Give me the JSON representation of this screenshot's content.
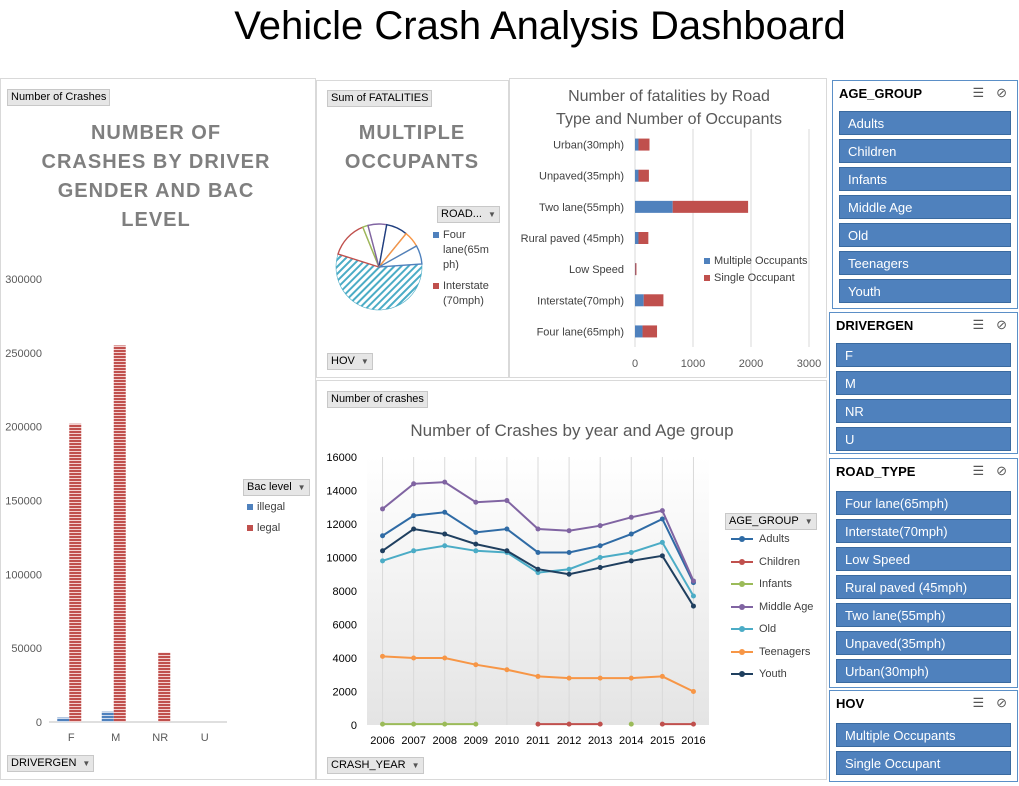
{
  "page_title": "Vehicle Crash Analysis Dashboard",
  "colors": {
    "blue": "#4f81bd",
    "red": "#c0504d",
    "slicer_bg": "#4f81bd"
  },
  "gender_chart": {
    "value_button": "Number of Crashes",
    "title_lines": [
      "NUMBER OF",
      "CRASHES BY DRIVER",
      "GENDER AND BAC",
      "LEVEL"
    ],
    "axis_button": "DRIVERGEN",
    "legend_button": "Bac level",
    "legend": [
      "illegal",
      "legal"
    ]
  },
  "pie_chart": {
    "value_button": "Sum of FATALITIES",
    "title_lines": [
      "MULTIPLE",
      "OCCUPANTS"
    ],
    "legend_button": "ROAD...",
    "legend": [
      "Four lane(65m ph)",
      "Interstate (70mph)"
    ],
    "filter_button": "HOV"
  },
  "road_chart": {
    "title_lines": [
      "Number of fatalities by Road",
      "Type and Number of Occupants"
    ],
    "legend": [
      "Multiple Occupants",
      "Single Occupant"
    ]
  },
  "line_chart": {
    "value_button": "Number of crashes",
    "title": "Number of Crashes by year and Age group",
    "legend_button": "AGE_GROUP",
    "axis_button": "CRASH_YEAR"
  },
  "chart_data": [
    {
      "type": "bar",
      "title": "NUMBER OF CRASHES BY DRIVER GENDER AND BAC LEVEL",
      "categories": [
        "F",
        "M",
        "NR",
        "U"
      ],
      "series": [
        {
          "name": "illegal",
          "values": [
            3000,
            7000,
            0,
            0
          ]
        },
        {
          "name": "legal",
          "values": [
            202000,
            255000,
            47000,
            0
          ]
        }
      ],
      "ylim": [
        0,
        300000
      ],
      "yticks": [
        "0",
        "50000",
        "100000",
        "150000",
        "200000",
        "250000",
        "300000"
      ],
      "legend_position": "right"
    },
    {
      "type": "pie",
      "title": "MULTIPLE OCCUPANTS",
      "labels": [
        "Four lane(65mph)",
        "Interstate (70mph)",
        "Low Speed",
        "Rural paved (45mph)",
        "Two lane(55mph)",
        "Unpaved(35mph)",
        "Urban(30mph)"
      ],
      "values": [
        56,
        14,
        2,
        7,
        8,
        6,
        7
      ]
    },
    {
      "type": "bar",
      "orientation": "horizontal",
      "stacked": true,
      "title": "Number of fatalities by Road Type and Number of Occupants",
      "categories": [
        "Urban(30mph)",
        "Unpaved(35mph)",
        "Two lane(55mph)",
        "Rural paved (45mph)",
        "Low Speed",
        "Interstate(70mph)",
        "Four lane(65mph)"
      ],
      "series": [
        {
          "name": "Multiple Occupants",
          "values": [
            60,
            60,
            650,
            60,
            5,
            150,
            130
          ]
        },
        {
          "name": "Single Occupant",
          "values": [
            190,
            180,
            1300,
            170,
            20,
            340,
            250
          ]
        }
      ],
      "xlim": [
        0,
        3000
      ],
      "xticks": [
        "0",
        "1000",
        "2000",
        "3000"
      ],
      "legend_position": "right"
    },
    {
      "type": "line",
      "title": "Number of Crashes by year and Age group",
      "x": [
        2006,
        2007,
        2008,
        2009,
        2010,
        2011,
        2012,
        2013,
        2014,
        2015,
        2016
      ],
      "xticks": [
        "2006",
        "2007",
        "2008",
        "2009",
        "2010",
        "2011",
        "2012",
        "2013",
        "2014",
        "2015",
        "2016"
      ],
      "ylim": [
        0,
        16000
      ],
      "yticks": [
        "0",
        "2000",
        "4000",
        "6000",
        "8000",
        "10000",
        "12000",
        "14000",
        "16000"
      ],
      "series": [
        {
          "name": "Adults",
          "color": "#2f6ba5",
          "values": [
            11300,
            12500,
            12700,
            11500,
            11700,
            10300,
            10300,
            10700,
            11400,
            12300,
            8500
          ]
        },
        {
          "name": "Children",
          "color": "#c0504d",
          "values": [
            null,
            null,
            null,
            null,
            null,
            50,
            50,
            50,
            null,
            50,
            50
          ]
        },
        {
          "name": "Infants",
          "color": "#9bbb59",
          "values": [
            50,
            50,
            50,
            50,
            null,
            null,
            null,
            null,
            50,
            null,
            null
          ]
        },
        {
          "name": "Middle Age",
          "color": "#8064a2",
          "values": [
            12900,
            14400,
            14500,
            13300,
            13400,
            11700,
            11600,
            11900,
            12400,
            12800,
            8600
          ]
        },
        {
          "name": "Old",
          "color": "#4bacc6",
          "values": [
            9800,
            10400,
            10700,
            10400,
            10300,
            9100,
            9300,
            10000,
            10300,
            10900,
            7700
          ]
        },
        {
          "name": "Teenagers",
          "color": "#f79646",
          "values": [
            4100,
            4000,
            4000,
            3600,
            3300,
            2900,
            2800,
            2800,
            2800,
            2900,
            2000
          ]
        },
        {
          "name": "Youth",
          "color": "#1f3f5f",
          "values": [
            10400,
            11700,
            11400,
            10800,
            10400,
            9300,
            9000,
            9400,
            9800,
            10100,
            7100
          ]
        }
      ],
      "legend_position": "right"
    }
  ],
  "slicers": [
    {
      "title": "AGE_GROUP",
      "items": [
        "Adults",
        "Children",
        "Infants",
        "Middle Age",
        "Old",
        "Teenagers",
        "Youth"
      ]
    },
    {
      "title": "DRIVERGEN",
      "items": [
        "F",
        "M",
        "NR",
        "U"
      ]
    },
    {
      "title": "ROAD_TYPE",
      "items": [
        "Four lane(65mph)",
        "Interstate(70mph)",
        "Low Speed",
        "Rural paved (45mph)",
        "Two lane(55mph)",
        "Unpaved(35mph)",
        "Urban(30mph)"
      ]
    },
    {
      "title": "HOV",
      "items": [
        "Multiple Occupants",
        "Single Occupant"
      ]
    }
  ],
  "icons": {
    "multiselect": "multi-select-icon",
    "clear_filter": "clear-filter-icon",
    "dropdown": "dropdown-arrow-icon"
  }
}
